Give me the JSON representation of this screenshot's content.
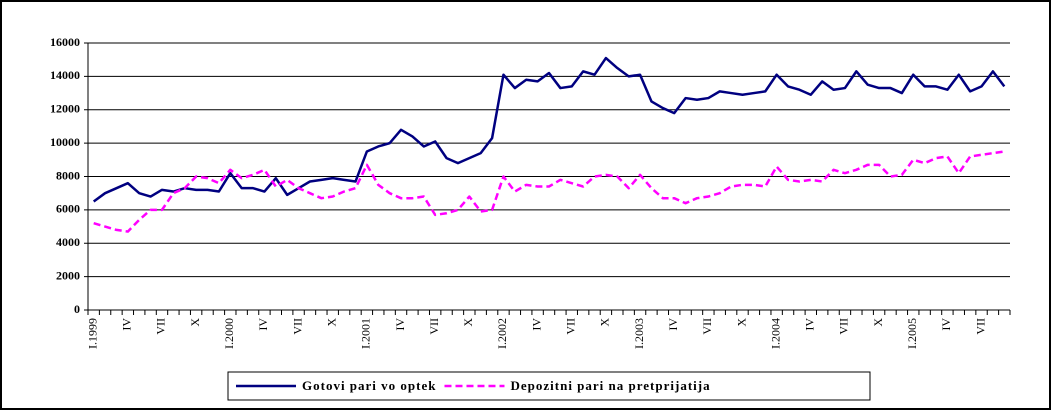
{
  "chart_data": {
    "type": "line",
    "categories": [
      "I.1999",
      null,
      null,
      "IV",
      null,
      null,
      "VII",
      null,
      null,
      "X",
      null,
      null,
      "I.2000",
      null,
      null,
      "IV",
      null,
      null,
      "VII",
      null,
      null,
      "X",
      null,
      null,
      "I.2001",
      null,
      null,
      "IV",
      null,
      null,
      "VII",
      null,
      null,
      "X",
      null,
      null,
      "I.2002",
      null,
      null,
      "IV",
      null,
      null,
      "VII",
      null,
      null,
      "X",
      null,
      null,
      "I.2003",
      null,
      null,
      "IV",
      null,
      null,
      "VII",
      null,
      null,
      "X",
      null,
      null,
      "I.2004",
      null,
      null,
      "IV",
      null,
      null,
      "VII",
      null,
      null,
      "X",
      null,
      null,
      "I.2005",
      null,
      null,
      "IV",
      null,
      null,
      "VII",
      null,
      null
    ],
    "series": [
      {
        "name": "Gotovi pari vo optek",
        "color": "#000080",
        "dash": false,
        "values": [
          6500,
          7000,
          7300,
          7600,
          7000,
          6800,
          7200,
          7100,
          7300,
          7200,
          7200,
          7100,
          8200,
          7300,
          7300,
          7100,
          7900,
          6900,
          7300,
          7700,
          7800,
          7900,
          7800,
          7700,
          9500,
          9800,
          10000,
          10800,
          10400,
          9800,
          10100,
          9100,
          8800,
          9100,
          9400,
          10300,
          14100,
          13300,
          13800,
          13700,
          14200,
          13300,
          13400,
          14300,
          14100,
          15100,
          14500,
          14000,
          14100,
          12500,
          12100,
          11800,
          12700,
          12600,
          12700,
          13100,
          13000,
          12900,
          13000,
          13100,
          14100,
          13400,
          13200,
          12900,
          13700,
          13200,
          13300,
          14300,
          13500,
          13300,
          13300,
          13000,
          14100,
          13400,
          13400,
          13200,
          14100,
          13100,
          13400,
          14300,
          13400
        ]
      },
      {
        "name": "Depozitni pari na pretprijatija",
        "color": "#ff00ff",
        "dash": true,
        "values": [
          5200,
          5000,
          4800,
          4700,
          5400,
          6000,
          6000,
          7000,
          7300,
          8000,
          7900,
          7600,
          8400,
          7900,
          8100,
          8400,
          7400,
          7800,
          7300,
          7000,
          6700,
          6800,
          7100,
          7300,
          8700,
          7500,
          7000,
          6700,
          6700,
          6800,
          5700,
          5800,
          6000,
          6800,
          5900,
          6000,
          8000,
          7100,
          7500,
          7400,
          7400,
          7800,
          7600,
          7400,
          8000,
          8100,
          8000,
          7300,
          8100,
          7300,
          6700,
          6700,
          6400,
          6700,
          6800,
          7000,
          7400,
          7500,
          7500,
          7400,
          8600,
          7800,
          7700,
          7800,
          7700,
          8400,
          8200,
          8400,
          8700,
          8700,
          8000,
          8100,
          9000,
          8800,
          9100,
          9200,
          8200,
          9200,
          9300,
          9400,
          9500
        ]
      }
    ],
    "ylim": [
      0,
      16000
    ],
    "yticks": [
      0,
      2000,
      4000,
      6000,
      8000,
      10000,
      12000,
      14000,
      16000
    ],
    "grid": true,
    "legend": "bottom"
  }
}
